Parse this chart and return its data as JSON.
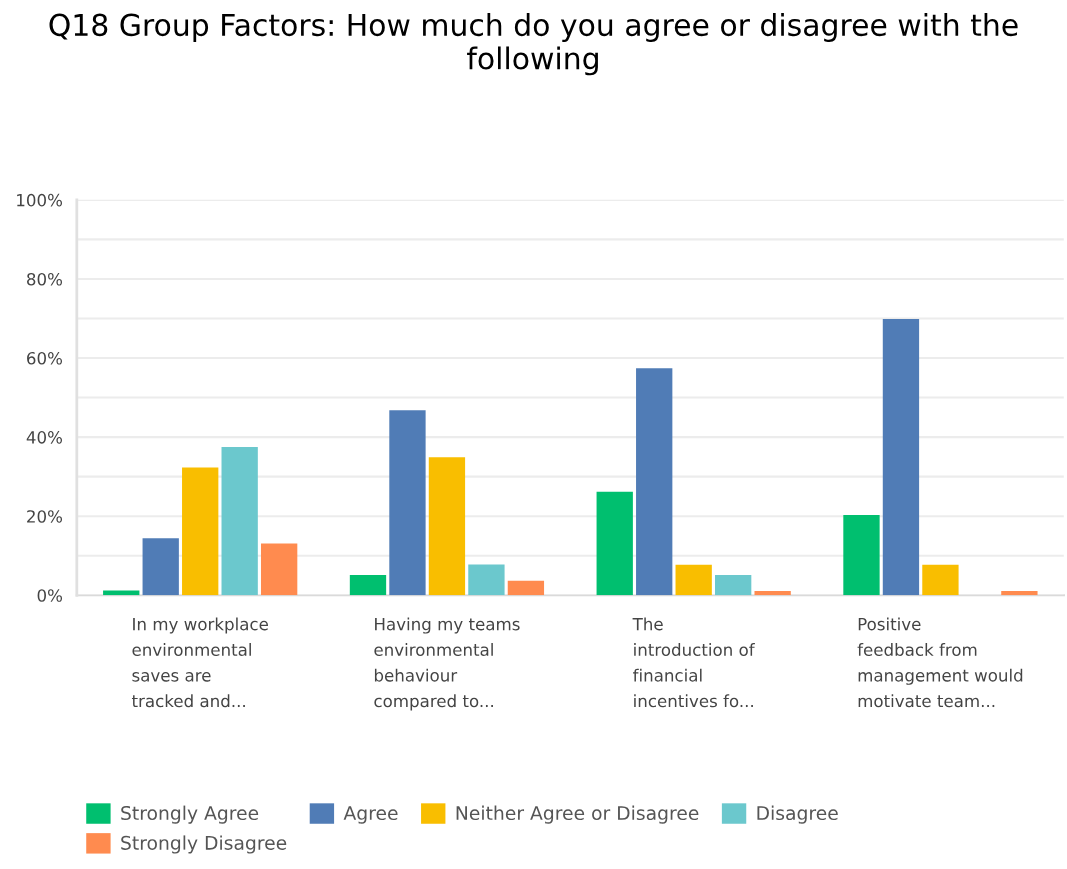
{
  "chart_data": {
    "type": "bar",
    "title": "Q18 Group Factors: How much do you agree or disagree with the following",
    "categories": [
      "In my workplace\nenvironmental\nsaves are\ntracked and...",
      "Having my teams\nenvironmental\nbehaviour\ncompared to...",
      "The\nintroduction of\nfinancial\nincentives fo...",
      "Positive\nfeedback from\nmanagement would\nmotivate team..."
    ],
    "series": [
      {
        "name": "Strongly Agree",
        "color": "#00bf6f",
        "values": [
          1.2,
          5.1,
          26.2,
          20.3
        ]
      },
      {
        "name": "Agree",
        "color": "#507cb6",
        "values": [
          14.4,
          46.8,
          57.4,
          69.9
        ]
      },
      {
        "name": "Neither Agree or Disagree",
        "color": "#f9be00",
        "values": [
          32.3,
          34.9,
          7.7,
          7.7
        ]
      },
      {
        "name": "Disagree",
        "color": "#6bc8cd",
        "values": [
          37.5,
          7.8,
          5.1,
          0
        ]
      },
      {
        "name": "Strongly Disagree",
        "color": "#ff8b4f",
        "values": [
          13.1,
          3.7,
          1.1,
          1.1
        ]
      }
    ],
    "ylim": [
      0,
      100
    ],
    "yticks": [
      {
        "value": 0,
        "label": "0%"
      },
      {
        "value": 10,
        "label": null
      },
      {
        "value": 20,
        "label": "20%"
      },
      {
        "value": 30,
        "label": null
      },
      {
        "value": 40,
        "label": "40%"
      },
      {
        "value": 50,
        "label": null
      },
      {
        "value": 60,
        "label": "60%"
      },
      {
        "value": 70,
        "label": null
      },
      {
        "value": 80,
        "label": "80%"
      },
      {
        "value": 90,
        "label": null
      },
      {
        "value": 100,
        "label": "100%"
      }
    ],
    "grid": "y",
    "legend": "bottom"
  }
}
